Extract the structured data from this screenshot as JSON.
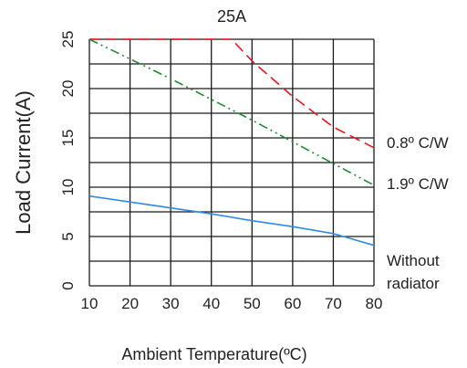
{
  "chart_data": {
    "type": "line",
    "title": "25A",
    "xlabel": "Ambient Temperature(ºC)",
    "ylabel": "Load Current(A)",
    "xlim": [
      10,
      80
    ],
    "ylim": [
      0,
      25
    ],
    "x_ticks": [
      10,
      20,
      30,
      40,
      50,
      60,
      70,
      80
    ],
    "y_ticks": [
      0,
      5,
      10,
      15,
      20,
      25
    ],
    "grid": true,
    "series": [
      {
        "name": "0.8º C/W",
        "color": "#e8141e",
        "style": "dashed",
        "x": [
          10,
          45,
          50,
          60,
          70,
          80
        ],
        "y": [
          25,
          25,
          22.8,
          19.2,
          16.1,
          14.0
        ]
      },
      {
        "name": "1.9º C/W",
        "color": "#1f8a2e",
        "style": "dash-dot-dot",
        "x": [
          10,
          20,
          30,
          40,
          50,
          60,
          70,
          80
        ],
        "y": [
          25,
          23.0,
          21.0,
          18.9,
          16.8,
          14.6,
          12.4,
          10.2
        ]
      },
      {
        "name": "Without radiator",
        "color": "#2d8be8",
        "style": "solid",
        "x": [
          10,
          20,
          30,
          40,
          50,
          60,
          70,
          80
        ],
        "y": [
          9.1,
          8.5,
          7.9,
          7.3,
          6.6,
          6.0,
          5.3,
          4.1
        ]
      }
    ]
  }
}
